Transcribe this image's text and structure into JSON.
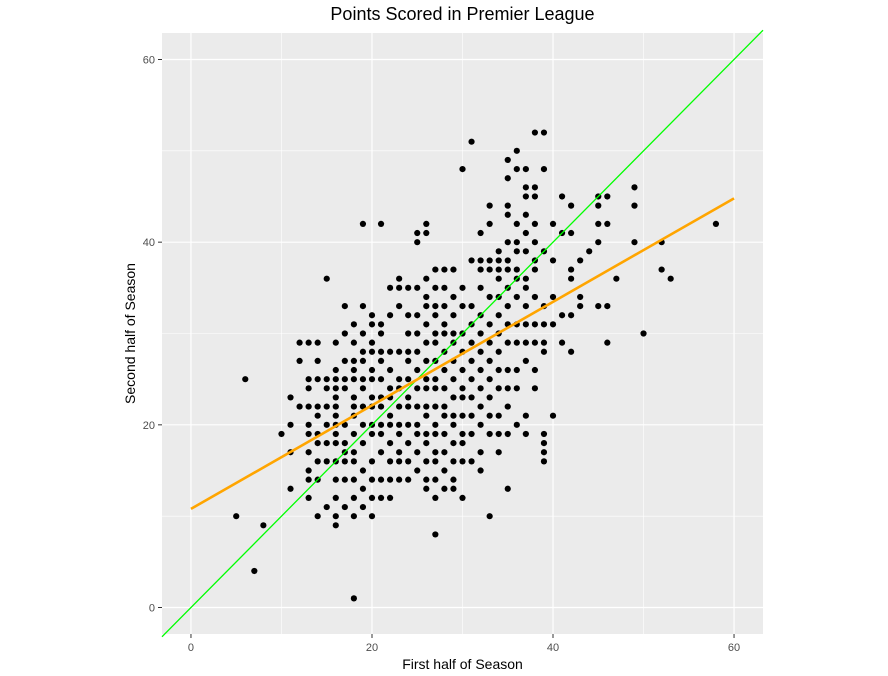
{
  "chart_data": {
    "type": "scatter",
    "title": "Points Scored in Premier League",
    "xlabel": "First half of Season",
    "ylabel": "Second half of Season",
    "xlim": [
      -3.2,
      63.2
    ],
    "ylim": [
      -2.9,
      62.9
    ],
    "xticks": [
      0,
      20,
      40,
      60
    ],
    "yticks": [
      0,
      20,
      40,
      60
    ],
    "grid": true,
    "legend": "none",
    "colors": {
      "panel": "#ebebeb",
      "grid": "#ffffff",
      "points": "#000000",
      "identity_line": "#00ff00",
      "fit_line": "#ffa500"
    },
    "reference_lines": [
      {
        "kind": "identity",
        "points": [
          [
            -3.2,
            -3.2
          ],
          [
            63.2,
            63.2
          ]
        ]
      },
      {
        "kind": "linear_fit",
        "points": [
          [
            0,
            10.8
          ],
          [
            60,
            44.8
          ]
        ]
      }
    ],
    "points": [
      [
        5,
        10
      ],
      [
        6,
        25
      ],
      [
        7,
        4
      ],
      [
        8,
        9
      ],
      [
        10,
        19
      ],
      [
        11,
        13
      ],
      [
        11,
        17
      ],
      [
        11,
        20
      ],
      [
        11,
        23
      ],
      [
        12,
        22
      ],
      [
        12,
        27
      ],
      [
        12,
        29
      ],
      [
        13,
        12
      ],
      [
        13,
        14
      ],
      [
        13,
        15
      ],
      [
        13,
        17
      ],
      [
        13,
        19
      ],
      [
        13,
        20
      ],
      [
        13,
        22
      ],
      [
        13,
        24
      ],
      [
        13,
        25
      ],
      [
        13,
        29
      ],
      [
        14,
        10
      ],
      [
        14,
        14
      ],
      [
        14,
        16
      ],
      [
        14,
        18
      ],
      [
        14,
        19
      ],
      [
        14,
        21
      ],
      [
        14,
        22
      ],
      [
        14,
        25
      ],
      [
        14,
        27
      ],
      [
        14,
        29
      ],
      [
        15,
        11
      ],
      [
        15,
        16
      ],
      [
        15,
        18
      ],
      [
        15,
        20
      ],
      [
        15,
        22
      ],
      [
        15,
        24
      ],
      [
        15,
        25
      ],
      [
        15,
        36
      ],
      [
        16,
        9
      ],
      [
        16,
        10
      ],
      [
        16,
        12
      ],
      [
        16,
        14
      ],
      [
        16,
        16
      ],
      [
        16,
        18
      ],
      [
        16,
        19
      ],
      [
        16,
        20
      ],
      [
        16,
        21
      ],
      [
        16,
        22
      ],
      [
        16,
        23
      ],
      [
        16,
        24
      ],
      [
        16,
        25
      ],
      [
        16,
        26
      ],
      [
        16,
        29
      ],
      [
        17,
        11
      ],
      [
        17,
        14
      ],
      [
        17,
        16
      ],
      [
        17,
        17
      ],
      [
        17,
        18
      ],
      [
        17,
        20
      ],
      [
        17,
        24
      ],
      [
        17,
        25
      ],
      [
        17,
        27
      ],
      [
        17,
        30
      ],
      [
        17,
        33
      ],
      [
        18,
        1
      ],
      [
        18,
        10
      ],
      [
        18,
        12
      ],
      [
        18,
        14
      ],
      [
        18,
        16
      ],
      [
        18,
        17
      ],
      [
        18,
        19
      ],
      [
        18,
        21
      ],
      [
        18,
        22
      ],
      [
        18,
        23
      ],
      [
        18,
        25
      ],
      [
        18,
        26
      ],
      [
        18,
        27
      ],
      [
        18,
        29
      ],
      [
        18,
        31
      ],
      [
        19,
        11
      ],
      [
        19,
        13
      ],
      [
        19,
        15
      ],
      [
        19,
        18
      ],
      [
        19,
        20
      ],
      [
        19,
        22
      ],
      [
        19,
        24
      ],
      [
        19,
        25
      ],
      [
        19,
        27
      ],
      [
        19,
        28
      ],
      [
        19,
        30
      ],
      [
        19,
        33
      ],
      [
        19,
        42
      ],
      [
        20,
        10
      ],
      [
        20,
        12
      ],
      [
        20,
        14
      ],
      [
        20,
        16
      ],
      [
        20,
        19
      ],
      [
        20,
        20
      ],
      [
        20,
        22
      ],
      [
        20,
        23
      ],
      [
        20,
        25
      ],
      [
        20,
        26
      ],
      [
        20,
        28
      ],
      [
        20,
        29
      ],
      [
        20,
        31
      ],
      [
        20,
        32
      ],
      [
        21,
        12
      ],
      [
        21,
        14
      ],
      [
        21,
        17
      ],
      [
        21,
        19
      ],
      [
        21,
        20
      ],
      [
        21,
        22
      ],
      [
        21,
        23
      ],
      [
        21,
        25
      ],
      [
        21,
        27
      ],
      [
        21,
        28
      ],
      [
        21,
        30
      ],
      [
        21,
        31
      ],
      [
        21,
        42
      ],
      [
        22,
        12
      ],
      [
        22,
        14
      ],
      [
        22,
        16
      ],
      [
        22,
        18
      ],
      [
        22,
        20
      ],
      [
        22,
        21
      ],
      [
        22,
        23
      ],
      [
        22,
        24
      ],
      [
        22,
        26
      ],
      [
        22,
        28
      ],
      [
        22,
        32
      ],
      [
        22,
        35
      ],
      [
        23,
        14
      ],
      [
        23,
        16
      ],
      [
        23,
        17
      ],
      [
        23,
        19
      ],
      [
        23,
        20
      ],
      [
        23,
        22
      ],
      [
        23,
        24
      ],
      [
        23,
        25
      ],
      [
        23,
        28
      ],
      [
        23,
        33
      ],
      [
        23,
        35
      ],
      [
        23,
        36
      ],
      [
        24,
        14
      ],
      [
        24,
        16
      ],
      [
        24,
        18
      ],
      [
        24,
        20
      ],
      [
        24,
        22
      ],
      [
        24,
        23
      ],
      [
        24,
        25
      ],
      [
        24,
        27
      ],
      [
        24,
        28
      ],
      [
        24,
        30
      ],
      [
        24,
        32
      ],
      [
        24,
        35
      ],
      [
        25,
        15
      ],
      [
        25,
        17
      ],
      [
        25,
        19
      ],
      [
        25,
        20
      ],
      [
        25,
        22
      ],
      [
        25,
        24
      ],
      [
        25,
        26
      ],
      [
        25,
        28
      ],
      [
        25,
        30
      ],
      [
        25,
        32
      ],
      [
        25,
        35
      ],
      [
        25,
        40
      ],
      [
        25,
        41
      ],
      [
        26,
        13
      ],
      [
        26,
        14
      ],
      [
        26,
        16
      ],
      [
        26,
        18
      ],
      [
        26,
        19
      ],
      [
        26,
        21
      ],
      [
        26,
        22
      ],
      [
        26,
        24
      ],
      [
        26,
        25
      ],
      [
        26,
        27
      ],
      [
        26,
        29
      ],
      [
        26,
        31
      ],
      [
        26,
        33
      ],
      [
        26,
        34
      ],
      [
        26,
        36
      ],
      [
        26,
        41
      ],
      [
        26,
        42
      ],
      [
        27,
        8
      ],
      [
        27,
        12
      ],
      [
        27,
        14
      ],
      [
        27,
        16
      ],
      [
        27,
        17
      ],
      [
        27,
        19
      ],
      [
        27,
        20
      ],
      [
        27,
        22
      ],
      [
        27,
        24
      ],
      [
        27,
        25
      ],
      [
        27,
        27
      ],
      [
        27,
        29
      ],
      [
        27,
        30
      ],
      [
        27,
        32
      ],
      [
        27,
        33
      ],
      [
        27,
        35
      ],
      [
        27,
        37
      ],
      [
        28,
        13
      ],
      [
        28,
        15
      ],
      [
        28,
        17
      ],
      [
        28,
        19
      ],
      [
        28,
        21
      ],
      [
        28,
        22
      ],
      [
        28,
        24
      ],
      [
        28,
        26
      ],
      [
        28,
        28
      ],
      [
        28,
        30
      ],
      [
        28,
        31
      ],
      [
        28,
        33
      ],
      [
        28,
        35
      ],
      [
        28,
        37
      ],
      [
        29,
        13
      ],
      [
        29,
        14
      ],
      [
        29,
        16
      ],
      [
        29,
        18
      ],
      [
        29,
        20
      ],
      [
        29,
        21
      ],
      [
        29,
        23
      ],
      [
        29,
        25
      ],
      [
        29,
        27
      ],
      [
        29,
        29
      ],
      [
        29,
        30
      ],
      [
        29,
        32
      ],
      [
        29,
        34
      ],
      [
        29,
        37
      ],
      [
        30,
        12
      ],
      [
        30,
        16
      ],
      [
        30,
        18
      ],
      [
        30,
        19
      ],
      [
        30,
        21
      ],
      [
        30,
        23
      ],
      [
        30,
        24
      ],
      [
        30,
        26
      ],
      [
        30,
        28
      ],
      [
        30,
        30
      ],
      [
        30,
        33
      ],
      [
        30,
        35
      ],
      [
        30,
        48
      ],
      [
        31,
        16
      ],
      [
        31,
        19
      ],
      [
        31,
        21
      ],
      [
        31,
        23
      ],
      [
        31,
        25
      ],
      [
        31,
        27
      ],
      [
        31,
        29
      ],
      [
        31,
        31
      ],
      [
        31,
        33
      ],
      [
        31,
        38
      ],
      [
        31,
        51
      ],
      [
        32,
        15
      ],
      [
        32,
        17
      ],
      [
        32,
        20
      ],
      [
        32,
        22
      ],
      [
        32,
        24
      ],
      [
        32,
        26
      ],
      [
        32,
        28
      ],
      [
        32,
        30
      ],
      [
        32,
        32
      ],
      [
        32,
        35
      ],
      [
        32,
        37
      ],
      [
        32,
        38
      ],
      [
        32,
        41
      ],
      [
        33,
        10
      ],
      [
        33,
        19
      ],
      [
        33,
        21
      ],
      [
        33,
        23
      ],
      [
        33,
        25
      ],
      [
        33,
        27
      ],
      [
        33,
        29
      ],
      [
        33,
        31
      ],
      [
        33,
        34
      ],
      [
        33,
        37
      ],
      [
        33,
        38
      ],
      [
        33,
        42
      ],
      [
        33,
        44
      ],
      [
        34,
        17
      ],
      [
        34,
        19
      ],
      [
        34,
        21
      ],
      [
        34,
        24
      ],
      [
        34,
        26
      ],
      [
        34,
        28
      ],
      [
        34,
        30
      ],
      [
        34,
        32
      ],
      [
        34,
        34
      ],
      [
        34,
        36
      ],
      [
        34,
        37
      ],
      [
        34,
        38
      ],
      [
        34,
        39
      ],
      [
        35,
        13
      ],
      [
        35,
        19
      ],
      [
        35,
        22
      ],
      [
        35,
        24
      ],
      [
        35,
        26
      ],
      [
        35,
        29
      ],
      [
        35,
        31
      ],
      [
        35,
        33
      ],
      [
        35,
        35
      ],
      [
        35,
        37
      ],
      [
        35,
        38
      ],
      [
        35,
        40
      ],
      [
        35,
        43
      ],
      [
        35,
        44
      ],
      [
        35,
        47
      ],
      [
        35,
        49
      ],
      [
        36,
        20
      ],
      [
        36,
        24
      ],
      [
        36,
        26
      ],
      [
        36,
        29
      ],
      [
        36,
        31
      ],
      [
        36,
        34
      ],
      [
        36,
        36
      ],
      [
        36,
        37
      ],
      [
        36,
        39
      ],
      [
        36,
        40
      ],
      [
        36,
        42
      ],
      [
        36,
        48
      ],
      [
        36,
        50
      ],
      [
        37,
        19
      ],
      [
        37,
        21
      ],
      [
        37,
        27
      ],
      [
        37,
        29
      ],
      [
        37,
        31
      ],
      [
        37,
        33
      ],
      [
        37,
        35
      ],
      [
        37,
        36
      ],
      [
        37,
        39
      ],
      [
        37,
        41
      ],
      [
        37,
        43
      ],
      [
        37,
        45
      ],
      [
        37,
        46
      ],
      [
        37,
        48
      ],
      [
        38,
        24
      ],
      [
        38,
        26
      ],
      [
        38,
        29
      ],
      [
        38,
        31
      ],
      [
        38,
        34
      ],
      [
        38,
        37
      ],
      [
        38,
        38
      ],
      [
        38,
        40
      ],
      [
        38,
        42
      ],
      [
        38,
        45
      ],
      [
        38,
        46
      ],
      [
        38,
        52
      ],
      [
        39,
        16
      ],
      [
        39,
        17
      ],
      [
        39,
        18
      ],
      [
        39,
        19
      ],
      [
        39,
        28
      ],
      [
        39,
        29
      ],
      [
        39,
        31
      ],
      [
        39,
        33
      ],
      [
        39,
        39
      ],
      [
        39,
        48
      ],
      [
        39,
        52
      ],
      [
        40,
        21
      ],
      [
        40,
        31
      ],
      [
        40,
        34
      ],
      [
        40,
        38
      ],
      [
        40,
        42
      ],
      [
        41,
        29
      ],
      [
        41,
        32
      ],
      [
        41,
        41
      ],
      [
        41,
        45
      ],
      [
        42,
        28
      ],
      [
        42,
        32
      ],
      [
        42,
        36
      ],
      [
        42,
        37
      ],
      [
        42,
        41
      ],
      [
        42,
        44
      ],
      [
        43,
        33
      ],
      [
        43,
        34
      ],
      [
        43,
        38
      ],
      [
        44,
        39
      ],
      [
        45,
        33
      ],
      [
        45,
        40
      ],
      [
        45,
        42
      ],
      [
        45,
        44
      ],
      [
        45,
        45
      ],
      [
        46,
        29
      ],
      [
        46,
        33
      ],
      [
        46,
        42
      ],
      [
        46,
        45
      ],
      [
        47,
        36
      ],
      [
        49,
        40
      ],
      [
        49,
        44
      ],
      [
        49,
        46
      ],
      [
        50,
        30
      ],
      [
        52,
        37
      ],
      [
        52,
        40
      ],
      [
        53,
        36
      ],
      [
        58,
        42
      ]
    ]
  }
}
